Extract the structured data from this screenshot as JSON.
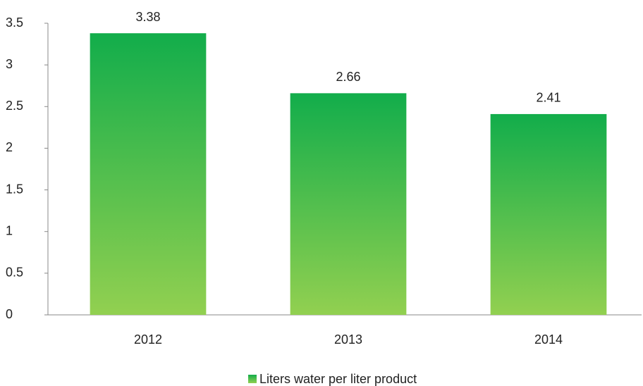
{
  "chart_data": {
    "type": "bar",
    "categories": [
      "2012",
      "2013",
      "2014"
    ],
    "series": [
      {
        "name": "Liters water per liter product",
        "color": "#12ad4b",
        "values": [
          3.38,
          2.66,
          2.41
        ]
      }
    ],
    "ylim": [
      0,
      3.5
    ],
    "yticks": [
      0,
      0.5,
      1,
      1.5,
      2,
      2.5,
      3,
      3.5
    ],
    "grid": false,
    "legend": "bottom"
  }
}
